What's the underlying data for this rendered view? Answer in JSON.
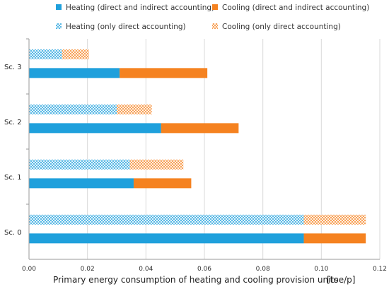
{
  "chart_data": {
    "type": "bar",
    "orientation": "horizontal",
    "stacked": true,
    "categories": [
      "Sc. 0",
      "Sc. 1",
      "Sc. 2",
      "Sc. 3"
    ],
    "groups": [
      {
        "name": "direct and indirect accounting",
        "series": [
          {
            "name": "Heating (direct and indirect accounting)",
            "values": [
              0.094,
              0.0358,
              0.0452,
              0.031
            ],
            "color": "#1fa0dc",
            "pattern": "solid"
          },
          {
            "name": "Cooling (direct and indirect accounting)",
            "values": [
              0.0212,
              0.0197,
              0.0265,
              0.03
            ],
            "color": "#f58220",
            "pattern": "solid"
          }
        ]
      },
      {
        "name": "only direct accounting",
        "series": [
          {
            "name": "Heating (only direct accounting)",
            "values": [
              0.094,
              0.0345,
              0.03,
              0.0113
            ],
            "color": "#1fa0dc",
            "pattern": "crosshatch"
          },
          {
            "name": "Cooling (only direct accounting)",
            "values": [
              0.0212,
              0.0183,
              0.012,
              0.0092
            ],
            "color": "#f58220",
            "pattern": "crosshatch"
          }
        ]
      }
    ],
    "xlabel": "Primary energy consumption of heating and cooling provision units",
    "xunit": "[toe/p]",
    "xlim": [
      0,
      0.12
    ],
    "xticks": [
      "0.00",
      "0.02",
      "0.04",
      "0.06",
      "0.08",
      "0.10",
      "0.12"
    ],
    "xtick_values": [
      0,
      0.02,
      0.04,
      0.06,
      0.08,
      0.1,
      0.12
    ],
    "grid": "vertical",
    "legend_position": "top"
  }
}
